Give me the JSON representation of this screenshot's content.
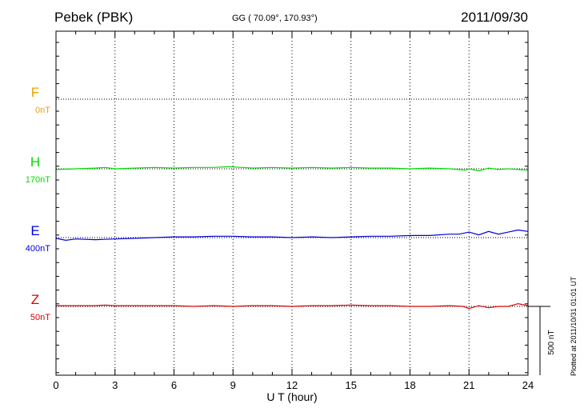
{
  "header": {
    "station": "Pebek (PBK)",
    "coords": "GG ( 70.09°, 170.93°)",
    "date": "2011/09/30"
  },
  "footer": {
    "xlabel": "U T (hour)",
    "plotted": "Plotted at 2011/10/31 01:01 UT",
    "scale_label": "500 nT"
  },
  "colors": {
    "F": "#f0a000",
    "H": "#00dd00",
    "E": "#0000dd",
    "Z": "#dd0000"
  },
  "chart_data": {
    "type": "line",
    "title": "Pebek (PBK)",
    "xlabel": "U T (hour)",
    "xlim": [
      0,
      24
    ],
    "x_ticks": [
      "0",
      "3",
      "6",
      "9",
      "12",
      "15",
      "18",
      "21",
      "24"
    ],
    "grid": true,
    "scale_bar_nT": 500,
    "series": [
      {
        "name": "F",
        "baseline": "0nT",
        "color": "#f0a000",
        "has_data": false,
        "values": []
      },
      {
        "name": "H",
        "baseline": "170nT",
        "color": "#00dd00",
        "has_data": true,
        "x": [
          0,
          1,
          2,
          2.5,
          3,
          4,
          5,
          6,
          7,
          8,
          8.8,
          9.5,
          10,
          11,
          12,
          13,
          14,
          15,
          16,
          17,
          18,
          19,
          20,
          20.8,
          21,
          21.5,
          22,
          22.5,
          23,
          23.5,
          24
        ],
        "values": [
          -5,
          0,
          5,
          10,
          0,
          5,
          10,
          5,
          10,
          10,
          15,
          10,
          5,
          10,
          5,
          10,
          5,
          10,
          5,
          5,
          0,
          5,
          0,
          -10,
          0,
          -15,
          5,
          -5,
          0,
          -5,
          -10
        ]
      },
      {
        "name": "E",
        "baseline": "400nT",
        "color": "#0000dd",
        "has_data": true,
        "x": [
          0,
          0.5,
          1,
          2,
          3,
          4,
          5,
          6,
          7,
          8,
          9,
          10,
          11,
          12,
          13,
          14,
          15,
          16,
          17,
          18,
          19,
          20,
          20.5,
          21,
          21.5,
          22,
          22.5,
          23,
          23.5,
          24
        ],
        "values": [
          -5,
          -20,
          -10,
          -15,
          -10,
          -5,
          0,
          5,
          5,
          10,
          10,
          5,
          5,
          0,
          5,
          0,
          5,
          10,
          10,
          15,
          15,
          25,
          25,
          40,
          20,
          45,
          25,
          40,
          55,
          45
        ]
      },
      {
        "name": "Z",
        "baseline": "50nT",
        "color": "#dd0000",
        "has_data": true,
        "x": [
          0,
          1,
          2,
          2.5,
          3,
          4,
          5,
          6,
          7,
          8,
          9,
          10,
          11,
          12,
          13,
          14,
          15,
          16,
          17,
          18,
          19,
          20,
          20.7,
          21,
          21.5,
          22,
          22.5,
          23,
          23.5,
          24
        ],
        "values": [
          5,
          5,
          5,
          10,
          5,
          5,
          5,
          5,
          0,
          5,
          0,
          5,
          5,
          0,
          5,
          5,
          10,
          5,
          5,
          0,
          0,
          5,
          0,
          -15,
          5,
          -10,
          0,
          0,
          20,
          5
        ]
      }
    ]
  }
}
